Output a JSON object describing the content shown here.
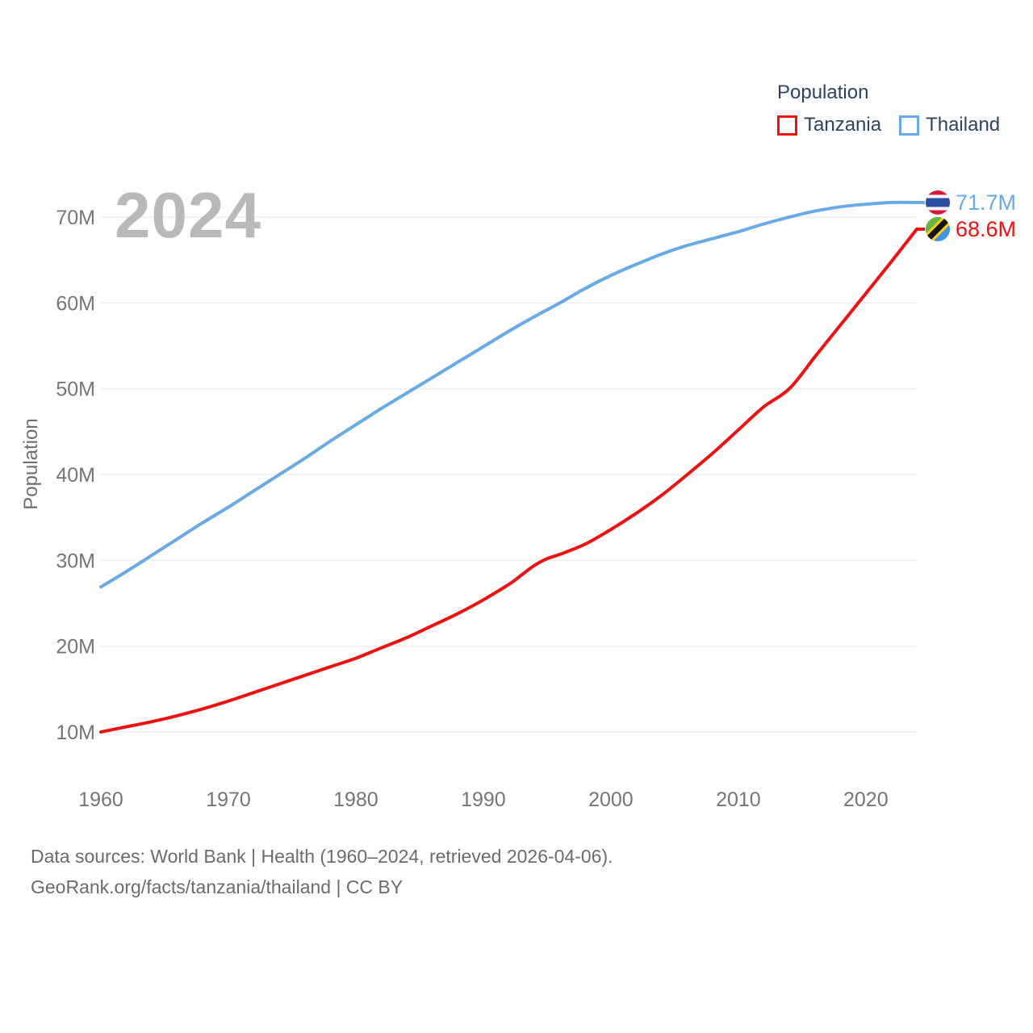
{
  "watermark": {
    "year": "2024"
  },
  "legend": {
    "title": "Population",
    "text_color": "#2b4560",
    "items": [
      {
        "label": "Tanzania",
        "color": "#ee1111"
      },
      {
        "label": "Thailand",
        "color": "#68a9e6"
      }
    ]
  },
  "chart_data": {
    "type": "line",
    "title": "",
    "xlabel": "",
    "ylabel": "Population",
    "xlim": [
      1960,
      2024
    ],
    "ylim": [
      10,
      73
    ],
    "grid": "horizontal",
    "legend_position": "top-right",
    "x_ticks": [
      1960,
      1970,
      1980,
      1990,
      2000,
      2010,
      2020
    ],
    "y_ticks": [
      {
        "value": 10,
        "label": "10M"
      },
      {
        "value": 20,
        "label": "20M"
      },
      {
        "value": 30,
        "label": "30M"
      },
      {
        "value": 40,
        "label": "40M"
      },
      {
        "value": 50,
        "label": "50M"
      },
      {
        "value": 60,
        "label": "60M"
      },
      {
        "value": 70,
        "label": "70M"
      }
    ],
    "series": [
      {
        "name": "Tanzania",
        "color": "#ee1111",
        "end_label": "68.6M",
        "flag": "tanzania",
        "flag_colors": {
          "green": "#6bb43f",
          "blue": "#4492e5",
          "yellow": "#fcd116",
          "black": "#141414"
        },
        "x": [
          1960,
          1962,
          1964,
          1966,
          1968,
          1970,
          1972,
          1974,
          1976,
          1978,
          1980,
          1982,
          1984,
          1986,
          1988,
          1990,
          1992,
          1993,
          1994,
          1995,
          1996,
          1998,
          2000,
          2002,
          2004,
          2006,
          2008,
          2010,
          2012,
          2014,
          2016,
          2018,
          2020,
          2022,
          2024
        ],
        "values": [
          10.0,
          10.6,
          11.2,
          11.9,
          12.7,
          13.6,
          14.6,
          15.6,
          16.6,
          17.6,
          18.6,
          19.8,
          21.0,
          22.4,
          23.8,
          25.4,
          27.2,
          28.3,
          29.4,
          30.2,
          30.7,
          31.9,
          33.6,
          35.5,
          37.6,
          40.0,
          42.5,
          45.2,
          47.9,
          50.0,
          53.7,
          57.4,
          61.1,
          64.8,
          68.6
        ]
      },
      {
        "name": "Thailand",
        "color": "#68a9e6",
        "end_label": "71.7M",
        "flag": "thailand",
        "flag_colors": {
          "red": "#d61c3c",
          "white": "#ffffff",
          "blue": "#2b4ea2"
        },
        "x": [
          1960,
          1962,
          1964,
          1966,
          1968,
          1970,
          1972,
          1974,
          1976,
          1978,
          1980,
          1982,
          1984,
          1986,
          1988,
          1990,
          1992,
          1994,
          1996,
          1998,
          2000,
          2002,
          2004,
          2006,
          2008,
          2010,
          2012,
          2014,
          2016,
          2018,
          2020,
          2022,
          2024
        ],
        "values": [
          26.9,
          28.7,
          30.6,
          32.5,
          34.4,
          36.2,
          38.1,
          40.0,
          41.9,
          43.9,
          45.8,
          47.7,
          49.5,
          51.3,
          53.1,
          54.9,
          56.7,
          58.4,
          60.0,
          61.7,
          63.2,
          64.5,
          65.7,
          66.7,
          67.5,
          68.3,
          69.2,
          70.0,
          70.7,
          71.2,
          71.5,
          71.7,
          71.7
        ]
      }
    ],
    "axis_text_color": "#757575",
    "gridline_color": "#ebebeb"
  },
  "footer": {
    "line1": "Data sources: World Bank | Health (1960–2024, retrieved 2026-04-06).",
    "line2": "GeoRank.org/facts/tanzania/thailand | CC BY"
  }
}
